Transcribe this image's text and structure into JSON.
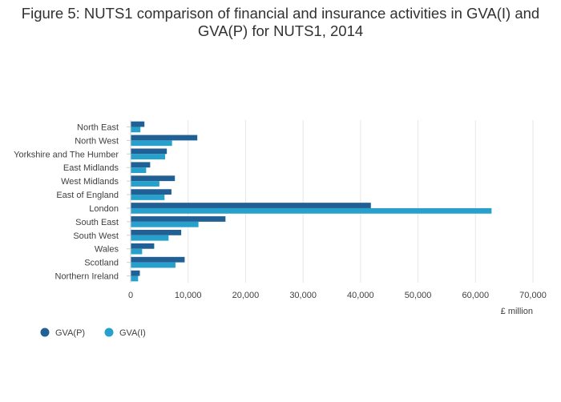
{
  "chart_data": {
    "type": "bar",
    "orientation": "horizontal",
    "title": "Figure 5: NUTS1 comparison of financial and insurance activities in GVA(I) and GVA(P) for NUTS1, 2014",
    "xlabel": "£ million",
    "ylabel": "",
    "xlim": [
      0,
      70000
    ],
    "xticks": [
      0,
      10000,
      20000,
      30000,
      40000,
      50000,
      60000,
      70000
    ],
    "xtick_labels": [
      "0",
      "10,000",
      "20,000",
      "30,000",
      "40,000",
      "50,000",
      "60,000",
      "70,000"
    ],
    "grid": true,
    "legend_position": "bottom-left",
    "categories": [
      "North East",
      "North West",
      "Yorkshire and The Humber",
      "East Midlands",
      "West Midlands",
      "East of England",
      "London",
      "South East",
      "South West",
      "Wales",
      "Scotland",
      "Northern Ireland"
    ],
    "series": [
      {
        "name": "GVA(P)",
        "color": "#206095",
        "values": [
          2400,
          11600,
          6300,
          3400,
          7700,
          7100,
          41800,
          16500,
          8800,
          4100,
          9400,
          1600
        ]
      },
      {
        "name": "GVA(I)",
        "color": "#27a0cc",
        "values": [
          1700,
          7200,
          6000,
          2700,
          5000,
          5900,
          62800,
          11800,
          6600,
          2000,
          7800,
          1300
        ]
      }
    ]
  }
}
